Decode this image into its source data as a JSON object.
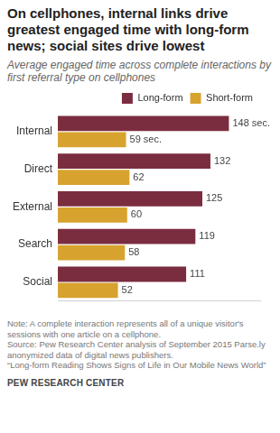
{
  "chart_data": {
    "type": "bar",
    "orientation": "horizontal",
    "title": "On cellphones, internal links drive greatest engaged time with long-form news; social sites drive lowest",
    "subtitle": "Average engaged time across complete interactions by first referral type on cellphones",
    "categories": [
      "Internal",
      "Direct",
      "External",
      "Search",
      "Social"
    ],
    "series": [
      {
        "name": "Long-form",
        "color": "#7b2d40",
        "values": [
          148,
          132,
          125,
          119,
          111
        ],
        "value_labels": [
          "148 sec.",
          "132",
          "125",
          "119",
          "111"
        ]
      },
      {
        "name": "Short-form",
        "color": "#d7a32e",
        "values": [
          59,
          62,
          60,
          58,
          52
        ],
        "value_labels": [
          "59 sec.",
          "62",
          "60",
          "58",
          "52"
        ]
      }
    ],
    "xlim": [
      0,
      175
    ],
    "grid": false,
    "legend": "top-right",
    "data_labels": true,
    "tick_labels": "y",
    "note": "Note: A complete interaction represents all of a unique visitor's sessions with one article on a cellphone.",
    "source": "Source: Pew Research Center analysis of September 2015 Parse.ly anonymized data of digital news publishers.\n“Long-form Reading Shows Signs of Life in Our Mobile News World”",
    "credit": "PEW RESEARCH CENTER"
  }
}
